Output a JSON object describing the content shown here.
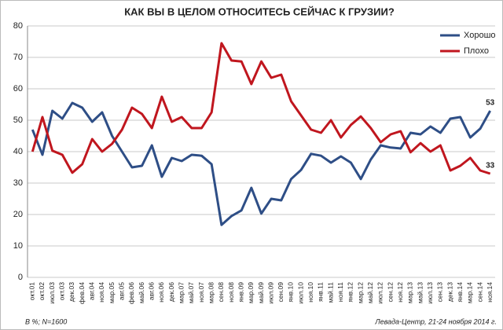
{
  "chart_data": {
    "type": "line",
    "title": "КАК ВЫ В ЦЕЛОМ ОТНОСИТЕСЬ СЕЙЧАС К ГРУЗИИ?",
    "note": "В %; N=1600",
    "source": "Левада-Центр, 21-24 ноября 2014 г.",
    "categories": [
      "окт.01",
      "окт.02",
      "июл.03",
      "окт.03",
      "дек.03",
      "фев.04",
      "авг.04",
      "ноя.04",
      "мар.05",
      "авг.05",
      "фев.06",
      "май.06",
      "авг.06",
      "ноя.06",
      "дек.06",
      "мар.07",
      "май.07",
      "ноя.07",
      "мар.08",
      "сен.08",
      "ноя.08",
      "янв.09",
      "мар.09",
      "май.09",
      "июл.09",
      "сен.09",
      "янв.10",
      "июл.10",
      "ноя.10",
      "янв.11",
      "май.11",
      "ноя.11",
      "янв.12",
      "мар.12",
      "май.12",
      "июл.12",
      "сен.12",
      "ноя.12",
      "мар.13",
      "май.13",
      "июл.13",
      "сен.13",
      "дек.13",
      "янв.14",
      "мар.14",
      "сен.14",
      "ноя.14"
    ],
    "series": [
      {
        "name": "Хорошо",
        "color": "#2e4e86",
        "values": [
          47,
          39,
          53,
          50.5,
          55.5,
          54,
          49.5,
          52.5,
          45,
          40,
          35,
          35.5,
          42,
          32,
          38,
          37,
          39,
          38.7,
          36,
          16.7,
          19.5,
          21.3,
          28.5,
          20.3,
          25,
          24.5,
          31.3,
          34.2,
          39.3,
          38.7,
          36.5,
          38.5,
          36.5,
          31.3,
          37.5,
          42,
          41.3,
          41,
          46,
          45.5,
          48,
          46,
          50.5,
          51,
          44.5,
          47.3,
          53
        ]
      },
      {
        "name": "Плохо",
        "color": "#c0161e",
        "values": [
          40,
          51,
          40.3,
          39,
          33.3,
          36,
          44,
          40,
          42.5,
          47,
          54,
          52,
          47.5,
          57.5,
          49.5,
          51,
          47.5,
          47.5,
          52.5,
          74.5,
          69,
          68.7,
          61.5,
          68.7,
          63.5,
          64.5,
          56,
          51.5,
          47,
          46,
          50,
          44.5,
          48.5,
          51.2,
          47.5,
          43,
          45.5,
          46.5,
          39.8,
          42.7,
          40,
          42,
          34,
          35.5,
          38,
          34,
          33
        ]
      }
    ],
    "ylim": [
      0,
      80
    ],
    "yticks": [
      0,
      10,
      20,
      30,
      40,
      50,
      60,
      70,
      80
    ],
    "grid": true,
    "legend": "top-right"
  }
}
